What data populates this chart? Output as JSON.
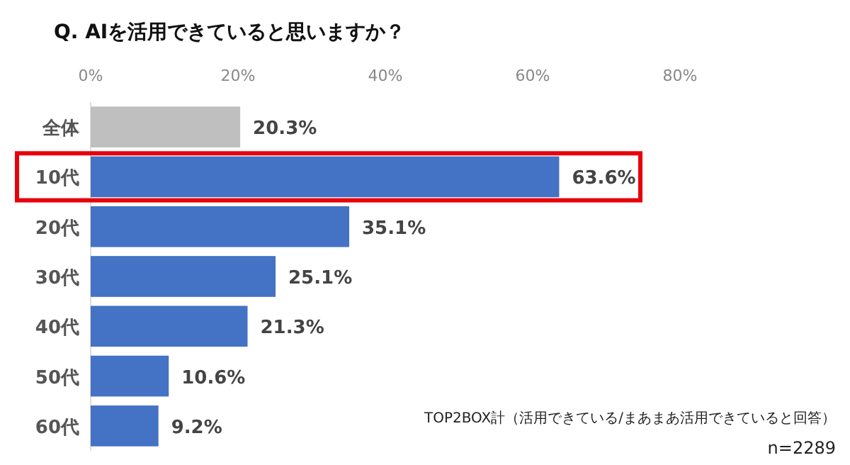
{
  "chart_data": {
    "type": "bar",
    "orientation": "horizontal",
    "title": "Q. AIを活用できていると思いますか？",
    "categories": [
      "全体",
      "10代",
      "20代",
      "30代",
      "40代",
      "50代",
      "60代"
    ],
    "values": [
      20.3,
      63.6,
      35.1,
      25.1,
      21.3,
      10.6,
      9.2
    ],
    "colors": [
      "#bfbfbf",
      "#4472c4",
      "#4472c4",
      "#4472c4",
      "#4472c4",
      "#4472c4",
      "#4472c4"
    ],
    "value_labels": [
      "20.3%",
      "63.6%",
      "35.1%",
      "25.1%",
      "21.3%",
      "10.6%",
      "9.2%"
    ],
    "xlim": [
      0,
      80
    ],
    "xticks": [
      {
        "value": 0,
        "label": "0%"
      },
      {
        "value": 20,
        "label": "20%"
      },
      {
        "value": 40,
        "label": "40%"
      },
      {
        "value": 60,
        "label": "60%"
      },
      {
        "value": 80,
        "label": "80%"
      }
    ],
    "grid": false,
    "annotations": [
      "TOP2BOX計（活用できている/まあまあ活用できていると回答）",
      "n=2289"
    ]
  }
}
